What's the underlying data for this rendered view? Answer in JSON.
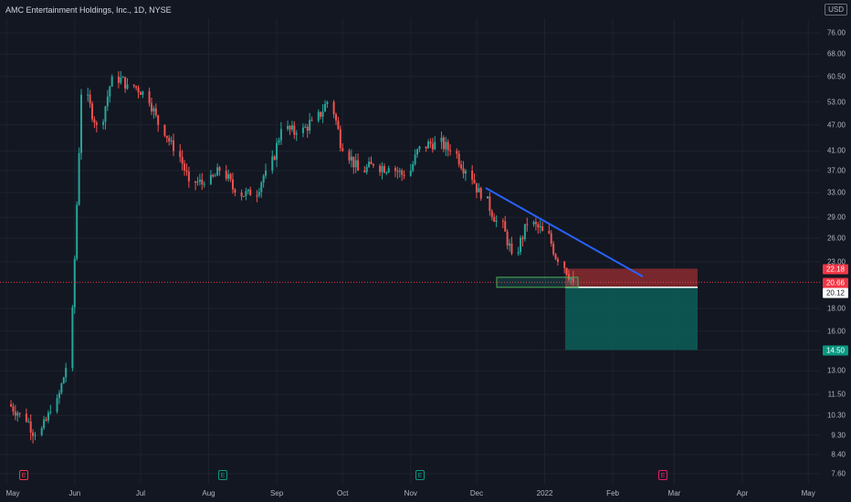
{
  "header": {
    "title": "AMC Entertainment Holdings, Inc., 1D, NYSE"
  },
  "currency": "USD",
  "y_ticks": [
    "76.00",
    "68.00",
    "60.50",
    "53.00",
    "47.00",
    "41.00",
    "37.00",
    "33.00",
    "29.00",
    "26.00",
    "23.00",
    "18.00",
    "16.00",
    "14.50",
    "13.00",
    "11.50",
    "10.30",
    "9.30",
    "8.40",
    "7.60"
  ],
  "x_ticks": [
    "May",
    "Jun",
    "Jul",
    "Aug",
    "Sep",
    "Oct",
    "Nov",
    "Dec",
    "2022",
    "Feb",
    "Mar",
    "Apr",
    "May"
  ],
  "price_tags": [
    {
      "label": "22.18",
      "bg": "#f23645",
      "fg": "#ffffff"
    },
    {
      "label": "20.66",
      "bg": "#f23645",
      "fg": "#ffffff"
    },
    {
      "label": "20.12",
      "bg": "#ffffff",
      "fg": "#131722"
    },
    {
      "label": "14.50",
      "bg": "#089981",
      "fg": "#ffffff"
    }
  ],
  "earnings_markers": [
    {
      "label": "E",
      "color": "#f23645"
    },
    {
      "label": "E",
      "color": "#089981"
    },
    {
      "label": "E",
      "color": "#089981"
    },
    {
      "label": "E",
      "color": "#e91e63"
    }
  ],
  "colors": {
    "background": "#131722",
    "up": "#26a69a",
    "down": "#ef5350",
    "trendline": "#2962ff",
    "stop_zone": "#8b2a2e",
    "target_zone": "#0c5a55"
  },
  "chart_data": {
    "type": "candlestick",
    "title": "AMC Entertainment Holdings, Inc., 1D, NYSE",
    "scale": "log",
    "ylim": [
      7.3,
      80
    ],
    "xlim": [
      "2021-04-28",
      "2022-05-08"
    ],
    "series": [
      {
        "name": "price",
        "x": [
          "2021-05-03",
          "2021-05-10",
          "2021-05-17",
          "2021-05-24",
          "2021-05-31",
          "2021-06-07",
          "2021-06-14",
          "2021-06-21",
          "2021-06-28",
          "2021-07-05",
          "2021-07-12",
          "2021-07-19",
          "2021-07-26",
          "2021-08-02",
          "2021-08-09",
          "2021-08-16",
          "2021-08-23",
          "2021-08-30",
          "2021-09-06",
          "2021-09-13",
          "2021-09-20",
          "2021-09-27",
          "2021-10-04",
          "2021-10-11",
          "2021-10-18",
          "2021-10-25",
          "2021-11-01",
          "2021-11-08",
          "2021-11-15",
          "2021-11-22",
          "2021-11-29",
          "2021-12-06",
          "2021-12-13",
          "2021-12-20",
          "2021-12-27",
          "2022-01-03",
          "2022-01-10"
        ],
        "close": [
          10.4,
          9.3,
          10.5,
          13.2,
          55.0,
          47.0,
          60.5,
          58.0,
          56.0,
          47.0,
          41.0,
          35.0,
          34.5,
          37.0,
          33.0,
          32.5,
          37.0,
          46.0,
          45.0,
          48.0,
          53.0,
          41.0,
          37.0,
          38.0,
          37.5,
          36.0,
          42.0,
          43.0,
          41.0,
          37.0,
          32.0,
          28.5,
          24.0,
          28.0,
          27.0,
          23.0,
          20.66
        ]
      }
    ],
    "annotations": {
      "trendline": {
        "from": {
          "x": "2021-12-03",
          "y": 33.5
        },
        "to": {
          "x": "2022-02-15",
          "y": 22.0
        }
      },
      "entry": 20.12,
      "stop": 22.18,
      "target": 14.5,
      "last_price": 20.66,
      "support_box": {
        "x0": "2021-12-08",
        "x1": "2022-01-18",
        "y0": 20.12,
        "y1": 21.2
      }
    }
  }
}
